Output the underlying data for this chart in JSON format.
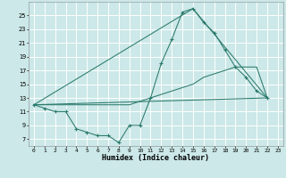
{
  "xlabel": "Humidex (Indice chaleur)",
  "bg_color": "#cce8e8",
  "grid_color": "#ffffff",
  "line_color": "#2a7a6a",
  "xlim": [
    -0.5,
    23.5
  ],
  "ylim": [
    6.0,
    27.0
  ],
  "xticks": [
    0,
    1,
    2,
    3,
    4,
    5,
    6,
    7,
    8,
    9,
    10,
    11,
    12,
    13,
    14,
    15,
    16,
    17,
    18,
    19,
    20,
    21,
    22,
    23
  ],
  "yticks": [
    7,
    9,
    11,
    13,
    15,
    17,
    19,
    21,
    23,
    25
  ],
  "main_x": [
    0,
    1,
    2,
    3,
    4,
    5,
    6,
    7,
    8,
    9,
    10,
    11,
    12,
    13,
    14,
    15,
    16,
    17,
    18,
    19,
    20,
    21,
    22
  ],
  "main_y": [
    12,
    11.5,
    11,
    11,
    8.5,
    8,
    7.5,
    7.5,
    6.5,
    9,
    9,
    13,
    18,
    21.5,
    25.5,
    26,
    24,
    22.5,
    20,
    17.5,
    16,
    14,
    13
  ],
  "tri_left_x": 0,
  "tri_left_y": 12,
  "tri_peak_x": 15,
  "tri_peak_y": 26,
  "tri_right_x": 22,
  "tri_right_y": 13,
  "diag_x": [
    0,
    1,
    2,
    3,
    4,
    5,
    6,
    7,
    8,
    9,
    10,
    11,
    12,
    13,
    14,
    15,
    16,
    17,
    18,
    19,
    20,
    21,
    22
  ],
  "diag_y": [
    12,
    12,
    12,
    12,
    12,
    12,
    12,
    12,
    12,
    12,
    12.5,
    13,
    13.5,
    14,
    14.5,
    15,
    16,
    16.5,
    17,
    17.5,
    17.5,
    17.5,
    13
  ]
}
